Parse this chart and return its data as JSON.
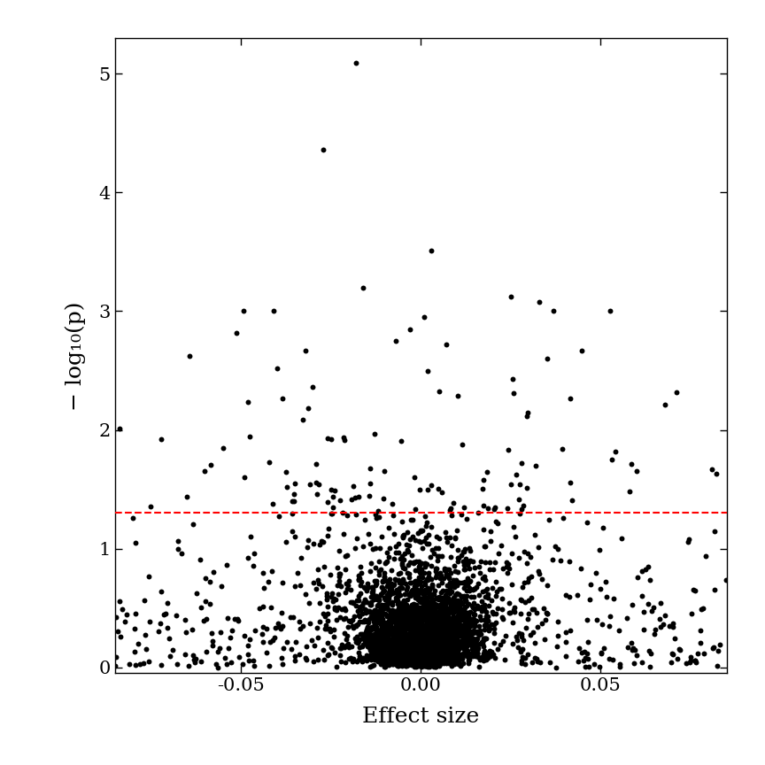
{
  "seed": 123,
  "significance_line": 1.3010299957,
  "xlim": [
    -0.085,
    0.085
  ],
  "ylim": [
    -0.05,
    5.3
  ],
  "xlabel": "Effect size",
  "ylabel": "− log₁₀(p)",
  "dot_color": "#000000",
  "dot_size": 18,
  "line_color": "#FF0000",
  "line_style": "--",
  "line_width": 1.5,
  "xticks": [
    -0.05,
    0.0,
    0.05
  ],
  "xticklabels": [
    "-0.05",
    "0.00",
    "0.05"
  ],
  "yticks": [
    0,
    1,
    2,
    3,
    4,
    5
  ],
  "background_color": "#ffffff",
  "figsize": [
    8.64,
    8.64
  ],
  "dpi": 100
}
